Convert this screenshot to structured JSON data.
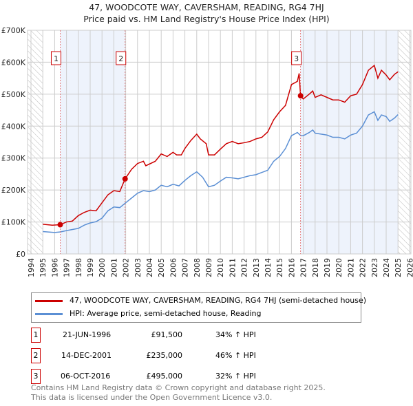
{
  "chart_data": {
    "type": "line",
    "title": "47, WOODCOTE WAY, CAVERSHAM, READING, RG4 7HJ",
    "subtitle": "Price paid vs. HM Land Registry's House Price Index (HPI)",
    "xlim": [
      1994,
      2026
    ],
    "ylim": [
      0,
      700000
    ],
    "x_ticks": [
      "1994",
      "1995",
      "1996",
      "1997",
      "1998",
      "1999",
      "2000",
      "2001",
      "2002",
      "2003",
      "2004",
      "2005",
      "2006",
      "2007",
      "2008",
      "2009",
      "2010",
      "2011",
      "2012",
      "2013",
      "2014",
      "2015",
      "2016",
      "2017",
      "2018",
      "2019",
      "2020",
      "2021",
      "2022",
      "2023",
      "2024",
      "2025",
      "2026"
    ],
    "y_ticks": [
      {
        "v": 0,
        "label": "£0"
      },
      {
        "v": 100000,
        "label": "£100K"
      },
      {
        "v": 200000,
        "label": "£200K"
      },
      {
        "v": 300000,
        "label": "£300K"
      },
      {
        "v": 400000,
        "label": "£400K"
      },
      {
        "v": 500000,
        "label": "£500K"
      },
      {
        "v": 600000,
        "label": "£600K"
      },
      {
        "v": 700000,
        "label": "£700K"
      }
    ],
    "grid": true,
    "series": [
      {
        "name": "47, WOODCOTE WAY, CAVERSHAM, READING, RG4 7HJ (semi-detached house)",
        "color": "#cc0000",
        "points": [
          [
            1995,
            93
          ],
          [
            1995.8,
            90
          ],
          [
            1996.47,
            91.5
          ],
          [
            1997,
            100
          ],
          [
            1997.5,
            103
          ],
          [
            1998,
            120
          ],
          [
            1998.5,
            130
          ],
          [
            1999,
            137
          ],
          [
            1999.5,
            135
          ],
          [
            2000,
            160
          ],
          [
            2000.5,
            185
          ],
          [
            2001,
            198
          ],
          [
            2001.5,
            195
          ],
          [
            2001.95,
            235
          ],
          [
            2002.5,
            265
          ],
          [
            2003,
            283
          ],
          [
            2003.5,
            290
          ],
          [
            2003.7,
            276
          ],
          [
            2004.5,
            290
          ],
          [
            2005,
            313
          ],
          [
            2005.5,
            305
          ],
          [
            2006,
            318
          ],
          [
            2006.3,
            310
          ],
          [
            2006.7,
            310
          ],
          [
            2007,
            330
          ],
          [
            2007.5,
            355
          ],
          [
            2008,
            375
          ],
          [
            2008.3,
            360
          ],
          [
            2008.8,
            345
          ],
          [
            2009,
            310
          ],
          [
            2009.5,
            310
          ],
          [
            2010,
            328
          ],
          [
            2010.5,
            345
          ],
          [
            2011,
            352
          ],
          [
            2011.5,
            345
          ],
          [
            2012,
            348
          ],
          [
            2012.5,
            352
          ],
          [
            2013,
            360
          ],
          [
            2013.5,
            365
          ],
          [
            2014,
            382
          ],
          [
            2014.5,
            420
          ],
          [
            2015,
            445
          ],
          [
            2015.5,
            465
          ],
          [
            2016,
            530
          ],
          [
            2016.5,
            540
          ],
          [
            2016.65,
            565
          ],
          [
            2016.77,
            495
          ],
          [
            2017,
            485
          ],
          [
            2017.5,
            500
          ],
          [
            2017.8,
            510
          ],
          [
            2018,
            490
          ],
          [
            2018.5,
            498
          ],
          [
            2019,
            490
          ],
          [
            2019.5,
            482
          ],
          [
            2020,
            482
          ],
          [
            2020.5,
            475
          ],
          [
            2021,
            495
          ],
          [
            2021.5,
            500
          ],
          [
            2022,
            530
          ],
          [
            2022.5,
            575
          ],
          [
            2023,
            590
          ],
          [
            2023.3,
            550
          ],
          [
            2023.6,
            575
          ],
          [
            2024,
            560
          ],
          [
            2024.3,
            545
          ],
          [
            2024.7,
            562
          ],
          [
            2025,
            570
          ]
        ]
      },
      {
        "name": "HPI: Average price, semi-detached house, Reading",
        "color": "#5b8fd4",
        "points": [
          [
            1995,
            70
          ],
          [
            1996,
            67
          ],
          [
            1996.5,
            69
          ],
          [
            1997,
            73
          ],
          [
            1998,
            80
          ],
          [
            1998.5,
            90
          ],
          [
            1999,
            97
          ],
          [
            1999.5,
            101
          ],
          [
            2000,
            112
          ],
          [
            2000.5,
            135
          ],
          [
            2001,
            147
          ],
          [
            2001.5,
            145
          ],
          [
            2002,
            160
          ],
          [
            2002.5,
            175
          ],
          [
            2003,
            190
          ],
          [
            2003.5,
            198
          ],
          [
            2004,
            195
          ],
          [
            2004.5,
            200
          ],
          [
            2005,
            215
          ],
          [
            2005.5,
            210
          ],
          [
            2006,
            218
          ],
          [
            2006.5,
            213
          ],
          [
            2007,
            230
          ],
          [
            2007.5,
            245
          ],
          [
            2008,
            257
          ],
          [
            2008.5,
            240
          ],
          [
            2009,
            210
          ],
          [
            2009.5,
            215
          ],
          [
            2010,
            228
          ],
          [
            2010.5,
            240
          ],
          [
            2011,
            238
          ],
          [
            2011.5,
            235
          ],
          [
            2012,
            240
          ],
          [
            2012.5,
            245
          ],
          [
            2013,
            248
          ],
          [
            2013.5,
            255
          ],
          [
            2014,
            262
          ],
          [
            2014.5,
            290
          ],
          [
            2015,
            305
          ],
          [
            2015.5,
            330
          ],
          [
            2016,
            370
          ],
          [
            2016.5,
            380
          ],
          [
            2016.8,
            370
          ],
          [
            2017,
            370
          ],
          [
            2017.5,
            380
          ],
          [
            2017.8,
            388
          ],
          [
            2018,
            378
          ],
          [
            2018.5,
            375
          ],
          [
            2019,
            372
          ],
          [
            2019.5,
            365
          ],
          [
            2020,
            365
          ],
          [
            2020.5,
            360
          ],
          [
            2021,
            372
          ],
          [
            2021.5,
            378
          ],
          [
            2022,
            400
          ],
          [
            2022.5,
            435
          ],
          [
            2023,
            445
          ],
          [
            2023.3,
            418
          ],
          [
            2023.6,
            435
          ],
          [
            2024,
            430
          ],
          [
            2024.3,
            415
          ],
          [
            2024.7,
            425
          ],
          [
            2025,
            436
          ]
        ]
      }
    ],
    "sales": [
      {
        "n": "1",
        "x": 1996.47,
        "price": 91500,
        "date": "21-JUN-1996",
        "price_label": "£91,500",
        "hpi": "34% ↑ HPI"
      },
      {
        "n": "2",
        "x": 2001.95,
        "price": 235000,
        "date": "14-DEC-2001",
        "price_label": "£235,000",
        "hpi": "46% ↑ HPI"
      },
      {
        "n": "3",
        "x": 2016.77,
        "price": 495000,
        "date": "06-OCT-2016",
        "price_label": "£495,000",
        "hpi": "32% ↑ HPI"
      }
    ],
    "legend_placement": "below"
  },
  "footer": {
    "line1": "Contains HM Land Registry data © Crown copyright and database right 2025.",
    "line2": "This data is licensed under the Open Government Licence v3.0."
  }
}
